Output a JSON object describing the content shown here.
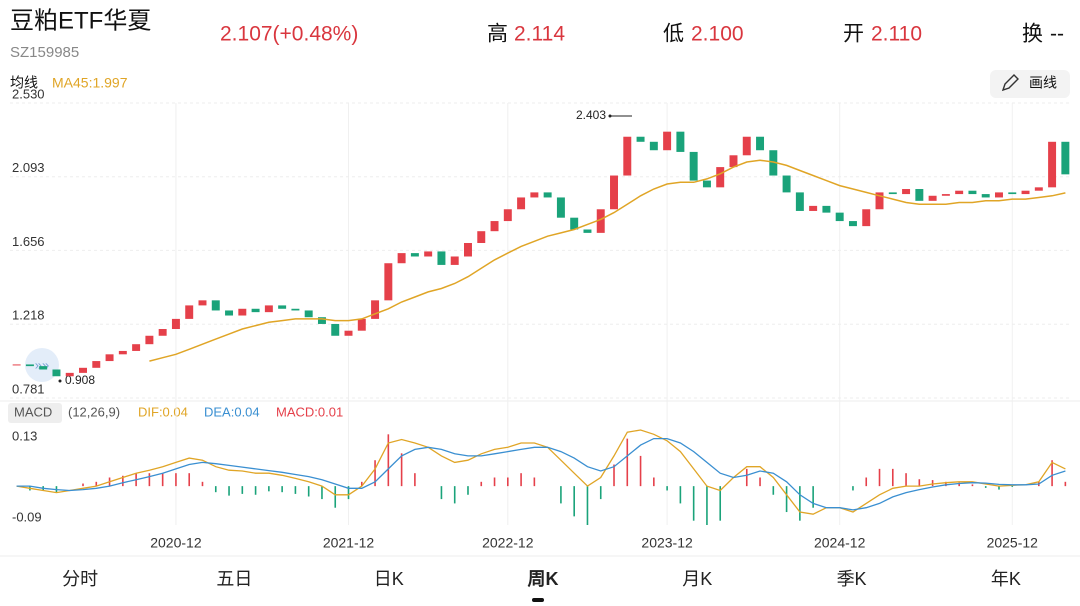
{
  "header": {
    "title": "豆粕ETF华夏",
    "code": "SZ159985",
    "price": "2.107(+0.48%)",
    "high_label": "高",
    "high": "2.114",
    "low_label": "低",
    "low": "2.100",
    "open_label": "开",
    "open": "2.110",
    "turnover_label": "换",
    "turnover": "--",
    "draw_button": "画线"
  },
  "tabs": [
    "分时",
    "五日",
    "日K",
    "周K",
    "月K",
    "季K",
    "年K"
  ],
  "active_tab": 3,
  "chart_data": [
    {
      "type": "candlestick",
      "legend_title": "均线",
      "ma_label": "MA45:1.997",
      "max_label": "2.403",
      "min_label": "0.908",
      "up_color": "#e5404a",
      "down_color": "#1aa37a",
      "ma_color": "#e0a526",
      "ylim": [
        0.781,
        2.53
      ],
      "yticks": [
        {
          "value": 2.53,
          "label": "2.530"
        },
        2.093,
        1.656,
        1.218,
        0.781
      ],
      "grid": true,
      "categories": [
        null,
        null,
        null,
        null,
        null,
        null,
        null,
        null,
        null,
        null,
        null,
        null,
        "2020-12",
        null,
        null,
        null,
        null,
        null,
        null,
        null,
        null,
        null,
        null,
        null,
        null,
        "2021-12",
        null,
        null,
        null,
        null,
        null,
        null,
        null,
        null,
        null,
        null,
        null,
        "2022-12",
        null,
        null,
        null,
        null,
        null,
        null,
        null,
        null,
        null,
        null,
        null,
        "2023-12",
        null,
        null,
        null,
        null,
        null,
        null,
        null,
        null,
        null,
        null,
        null,
        null,
        "2024-12",
        null,
        null,
        null,
        null,
        null,
        null,
        null,
        null,
        null,
        null,
        null,
        null,
        "2025-12",
        null,
        null,
        null,
        null
      ],
      "values": [
        0.98,
        0.97,
        0.95,
        0.91,
        0.93,
        0.96,
        1.0,
        1.04,
        1.06,
        1.1,
        1.15,
        1.19,
        1.25,
        1.33,
        1.36,
        1.3,
        1.27,
        1.31,
        1.29,
        1.33,
        1.31,
        1.3,
        1.26,
        1.22,
        1.15,
        1.18,
        1.25,
        1.36,
        1.58,
        1.64,
        1.62,
        1.65,
        1.57,
        1.62,
        1.7,
        1.77,
        1.83,
        1.9,
        1.97,
        2.0,
        1.97,
        1.85,
        1.78,
        1.76,
        1.9,
        2.1,
        2.33,
        2.3,
        2.25,
        2.36,
        2.24,
        2.07,
        2.03,
        2.15,
        2.22,
        2.33,
        2.25,
        2.1,
        2.0,
        1.89,
        1.92,
        1.88,
        1.83,
        1.8,
        1.9,
        2.0,
        1.99,
        2.02,
        1.95,
        1.98,
        1.99,
        2.01,
        1.99,
        1.97,
        2.0,
        1.99,
        2.01,
        2.03,
        2.3,
        2.107
      ],
      "ma_values": [
        null,
        null,
        null,
        null,
        null,
        null,
        null,
        null,
        null,
        null,
        1.0,
        1.02,
        1.04,
        1.07,
        1.1,
        1.13,
        1.16,
        1.19,
        1.21,
        1.23,
        1.24,
        1.25,
        1.25,
        1.25,
        1.24,
        1.24,
        1.25,
        1.28,
        1.31,
        1.35,
        1.38,
        1.41,
        1.43,
        1.46,
        1.5,
        1.55,
        1.6,
        1.64,
        1.68,
        1.71,
        1.74,
        1.76,
        1.78,
        1.81,
        1.84,
        1.88,
        1.93,
        1.98,
        2.02,
        2.05,
        2.06,
        2.06,
        2.08,
        2.11,
        2.15,
        2.18,
        2.19,
        2.18,
        2.16,
        2.13,
        2.1,
        2.07,
        2.04,
        2.02,
        2.0,
        1.98,
        1.96,
        1.94,
        1.93,
        1.93,
        1.93,
        1.94,
        1.94,
        1.95,
        1.95,
        1.96,
        1.96,
        1.97,
        1.98,
        1.997
      ]
    },
    {
      "type": "macd",
      "legend_title": "MACD",
      "params": "(12,26,9)",
      "ylim": [
        -0.09,
        0.13
      ],
      "yticks": [
        0.13,
        -0.09
      ],
      "series": [
        {
          "name": "DIF:0.04",
          "color": "#e0a526",
          "values": [
            0.0,
            -0.005,
            -0.01,
            -0.015,
            -0.01,
            -0.005,
            0.0,
            0.01,
            0.02,
            0.03,
            0.037,
            0.045,
            0.055,
            0.065,
            0.06,
            0.045,
            0.037,
            0.035,
            0.03,
            0.03,
            0.025,
            0.018,
            0.01,
            0.0,
            -0.02,
            -0.02,
            0.0,
            0.04,
            0.1,
            0.108,
            0.1,
            0.09,
            0.07,
            0.055,
            0.06,
            0.075,
            0.085,
            0.09,
            0.1,
            0.1,
            0.09,
            0.06,
            0.03,
            0.0,
            0.02,
            0.07,
            0.125,
            0.13,
            0.12,
            0.105,
            0.08,
            0.04,
            0.0,
            -0.01,
            0.02,
            0.045,
            0.045,
            0.02,
            -0.02,
            -0.06,
            -0.065,
            -0.05,
            -0.05,
            -0.06,
            -0.04,
            -0.02,
            -0.005,
            0.0,
            0.0,
            0.005,
            0.008,
            0.01,
            0.01,
            0.005,
            0.0,
            0.002,
            0.003,
            0.01,
            0.055,
            0.04
          ]
        },
        {
          "name": "DEA:0.04",
          "color": "#3a8fd1",
          "values": [
            0.0,
            0.0,
            -0.005,
            -0.008,
            -0.01,
            -0.008,
            -0.005,
            0.0,
            0.008,
            0.015,
            0.022,
            0.03,
            0.04,
            0.05,
            0.055,
            0.052,
            0.048,
            0.044,
            0.04,
            0.036,
            0.032,
            0.027,
            0.022,
            0.015,
            0.005,
            -0.005,
            -0.005,
            0.01,
            0.04,
            0.07,
            0.085,
            0.09,
            0.085,
            0.075,
            0.07,
            0.07,
            0.075,
            0.08,
            0.085,
            0.09,
            0.09,
            0.08,
            0.065,
            0.045,
            0.035,
            0.045,
            0.07,
            0.095,
            0.11,
            0.11,
            0.1,
            0.08,
            0.055,
            0.03,
            0.02,
            0.025,
            0.035,
            0.03,
            0.01,
            -0.02,
            -0.04,
            -0.05,
            -0.05,
            -0.055,
            -0.05,
            -0.04,
            -0.025,
            -0.015,
            -0.008,
            -0.002,
            0.003,
            0.006,
            0.008,
            0.007,
            0.004,
            0.003,
            0.003,
            0.005,
            0.025,
            0.035
          ]
        }
      ],
      "bars": {
        "name": "MACD:0.01",
        "up_color": "#e5404a",
        "down_color": "#1aa37a",
        "values": [
          0,
          -0.01,
          -0.01,
          -0.014,
          0,
          0.006,
          0.01,
          0.02,
          0.024,
          0.03,
          0.03,
          0.03,
          0.03,
          0.03,
          0.01,
          -0.014,
          -0.022,
          -0.018,
          -0.02,
          -0.012,
          -0.014,
          -0.018,
          -0.024,
          -0.03,
          -0.05,
          -0.03,
          0.01,
          0.06,
          0.12,
          0.076,
          0.03,
          0,
          -0.03,
          -0.04,
          -0.02,
          0.01,
          0.02,
          0.02,
          0.03,
          0.02,
          0,
          -0.04,
          -0.07,
          -0.09,
          -0.03,
          0.05,
          0.11,
          0.07,
          0.02,
          -0.01,
          -0.04,
          -0.08,
          -0.09,
          -0.08,
          0,
          0.04,
          0.02,
          -0.02,
          -0.06,
          -0.08,
          -0.05,
          0,
          0,
          -0.01,
          0.02,
          0.04,
          0.04,
          0.03,
          0.016,
          0.014,
          0.01,
          0.008,
          0.004,
          -0.004,
          -0.008,
          -0.002,
          0,
          0.01,
          0.06,
          0.01
        ]
      }
    }
  ]
}
